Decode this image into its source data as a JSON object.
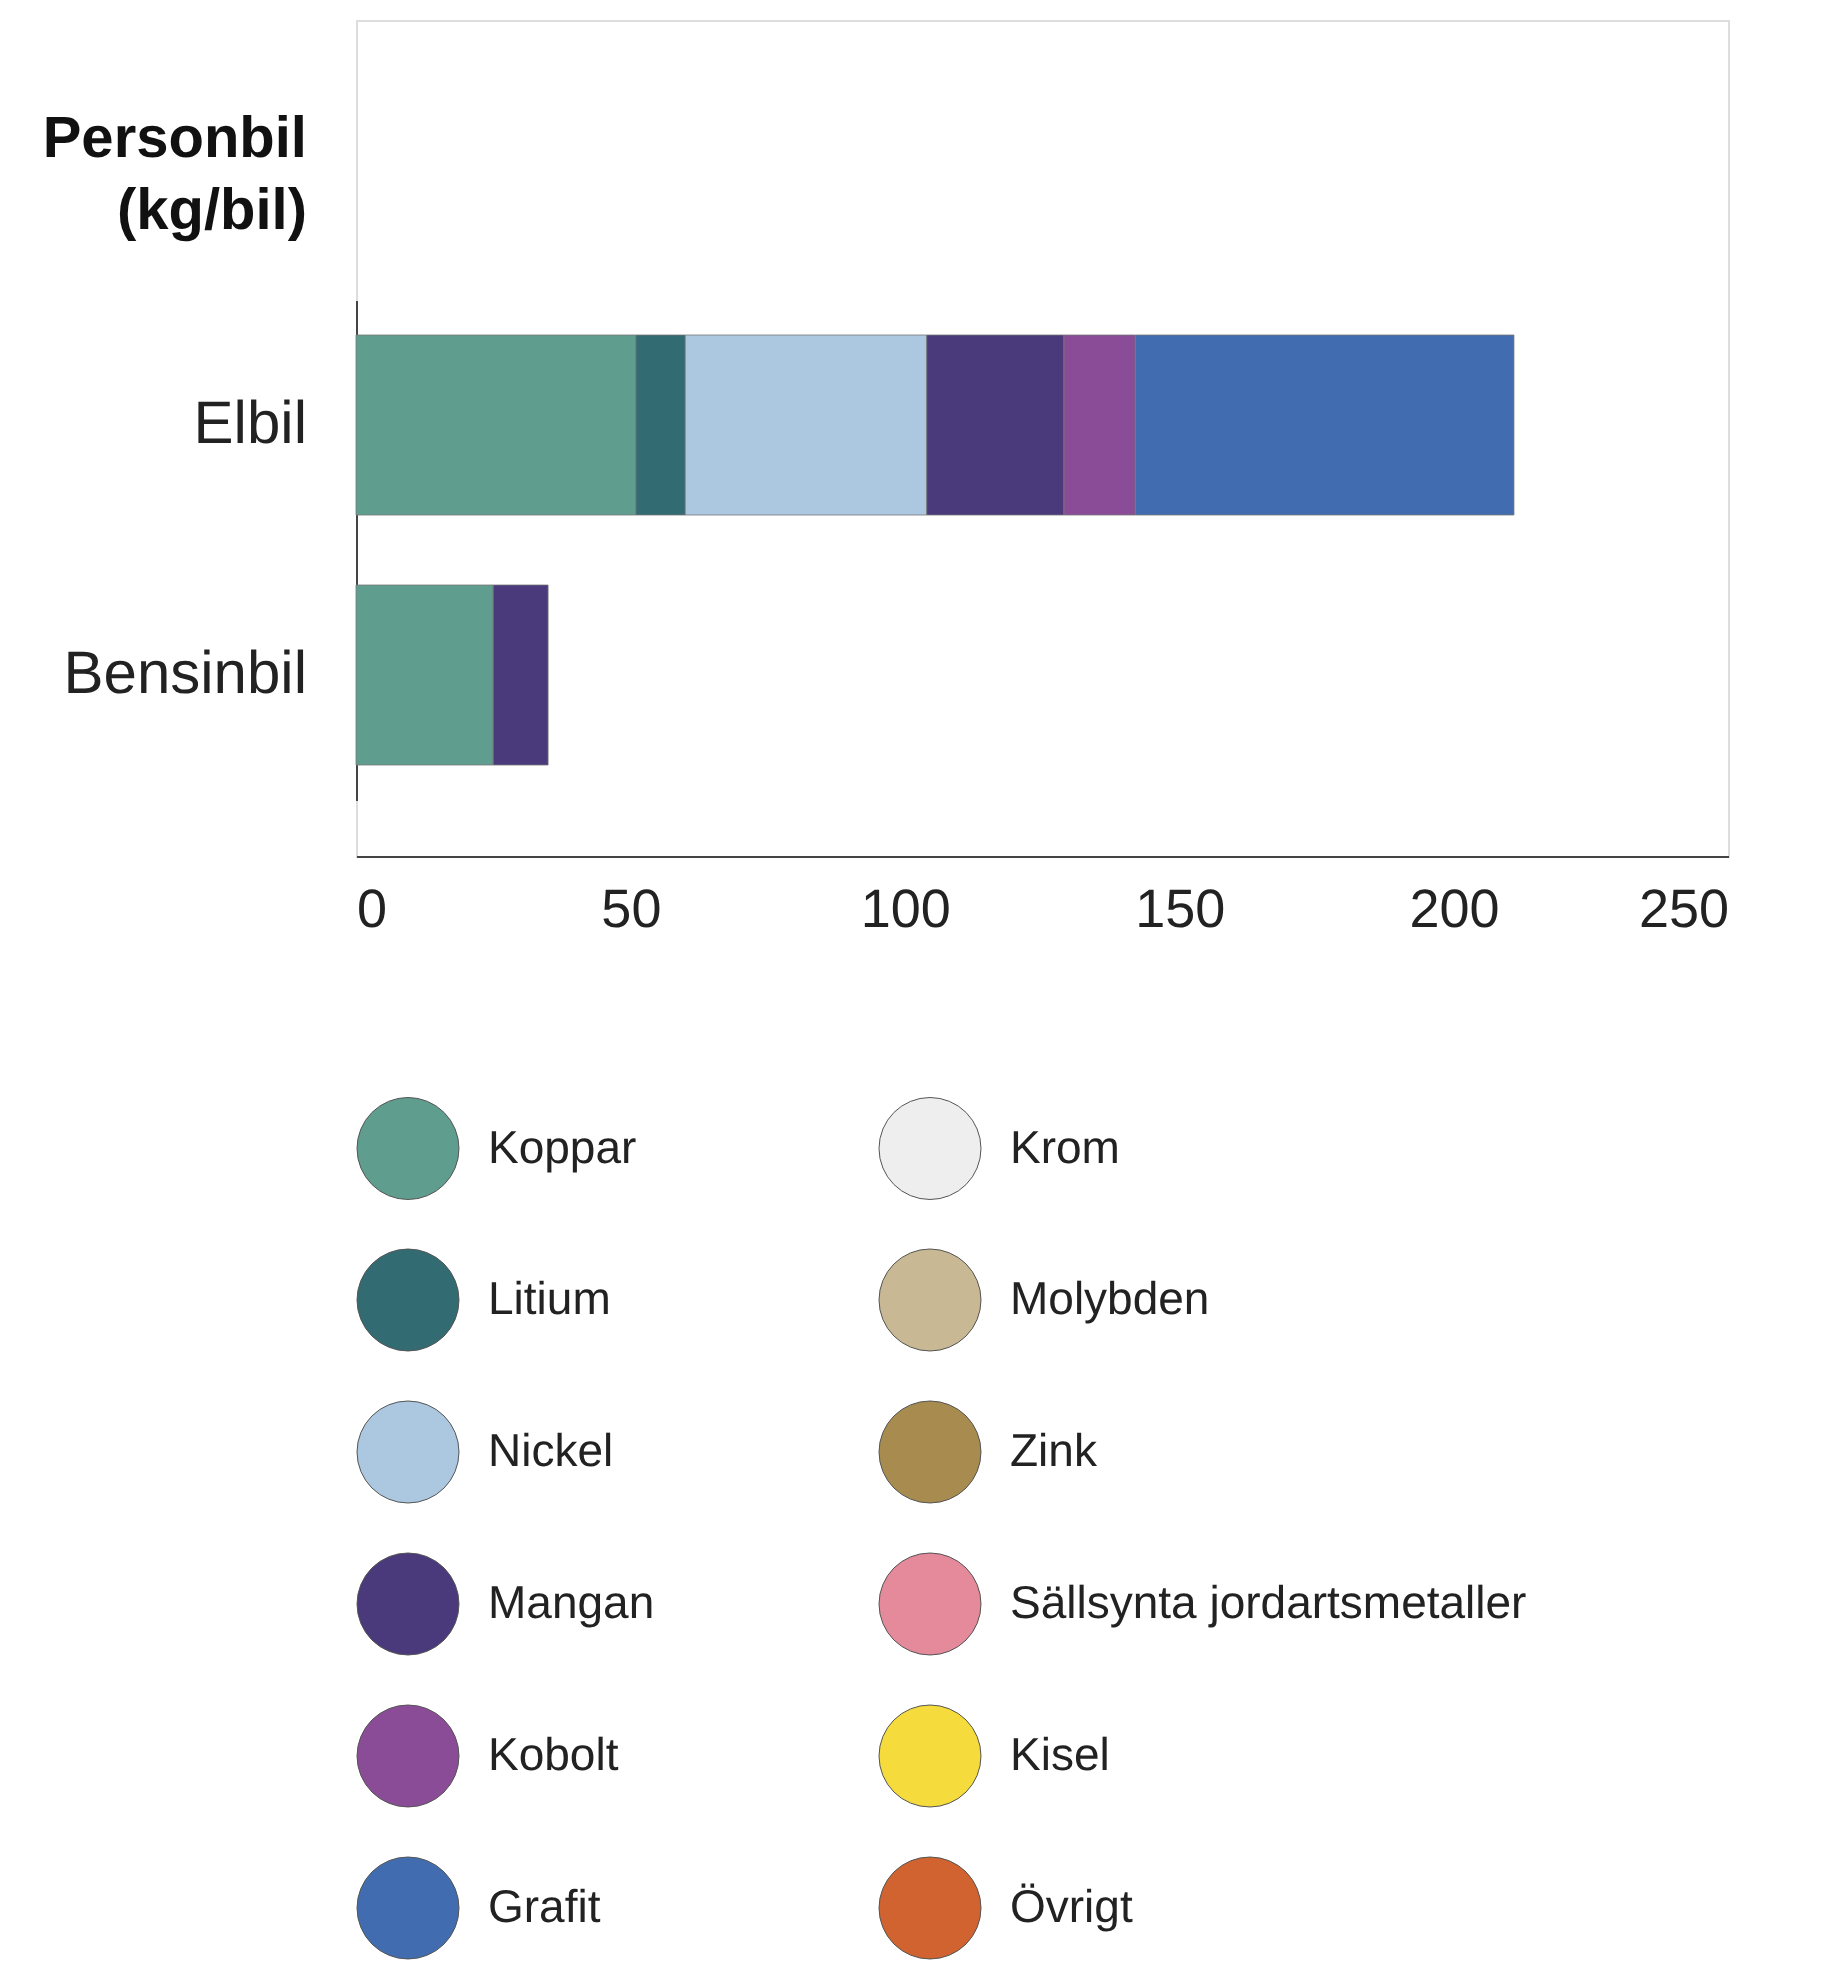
{
  "chart_data": {
    "type": "bar",
    "orientation": "horizontal",
    "stacked": true,
    "ylabel": "Personbil (kg/bil)",
    "categories": [
      "Elbil",
      "Bensinbil"
    ],
    "series": [
      {
        "name": "Koppar",
        "color": "#5f9e8f",
        "values": [
          51,
          25
        ]
      },
      {
        "name": "Litium",
        "color": "#336b73",
        "values": [
          9,
          null
        ]
      },
      {
        "name": "Nickel",
        "color": "#abc8e0",
        "values": [
          44,
          null
        ]
      },
      {
        "name": "Mangan",
        "color": "#4a3a7c",
        "values": [
          25,
          10
        ]
      },
      {
        "name": "Kobolt",
        "color": "#8a4c96",
        "values": [
          13,
          null
        ]
      },
      {
        "name": "Grafit",
        "color": "#416db0",
        "values": [
          69,
          null
        ]
      },
      {
        "name": "Krom",
        "color": "#eeeeee",
        "values": [
          null,
          null
        ]
      },
      {
        "name": "Molybden",
        "color": "#c9b894",
        "values": [
          null,
          null
        ]
      },
      {
        "name": "Zink",
        "color": "#a88c4f",
        "values": [
          null,
          null
        ]
      },
      {
        "name": "Sällsynta jordartsmetaller",
        "color": "#e48a9a",
        "values": [
          null,
          null
        ]
      },
      {
        "name": "Kisel",
        "color": "#f5dc3c",
        "values": [
          null,
          null
        ]
      },
      {
        "name": "Övrigt",
        "color": "#d0632f",
        "values": [
          null,
          null
        ]
      }
    ],
    "xlim": [
      0,
      250
    ],
    "xticks": [
      0,
      50,
      100,
      150,
      200,
      250
    ],
    "grid": false,
    "legend": "bottom"
  }
}
